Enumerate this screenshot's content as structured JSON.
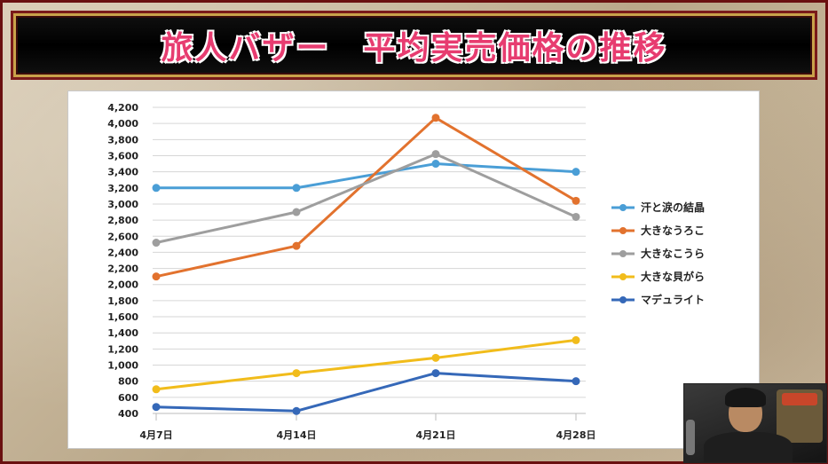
{
  "title": "旅人バザー　平均実売価格の推移",
  "chart_data": {
    "type": "line",
    "categories": [
      "4月7日",
      "4月14日",
      "4月21日",
      "4月28日"
    ],
    "ylim": [
      400,
      4200
    ],
    "yticks": [
      "4,200",
      "4,000",
      "3,800",
      "3,600",
      "3,400",
      "3,200",
      "3,000",
      "2,800",
      "2,600",
      "2,400",
      "2,200",
      "2,000",
      "1,800",
      "1,600",
      "1,400",
      "1,200",
      "1,000",
      "800",
      "600",
      "400"
    ],
    "grid": true,
    "legend_position": "right",
    "series": [
      {
        "name": "汗と涙の結晶",
        "color": "#4a9ed6",
        "values": [
          3200,
          3200,
          3500,
          3400
        ]
      },
      {
        "name": "大きなうろこ",
        "color": "#e2722e",
        "values": [
          2100,
          2480,
          4070,
          3040
        ]
      },
      {
        "name": "大きなこうら",
        "color": "#9e9e9e",
        "values": [
          2520,
          2900,
          3620,
          2840
        ]
      },
      {
        "name": "大きな貝がら",
        "color": "#f1bc1b",
        "values": [
          700,
          900,
          1090,
          1310
        ]
      },
      {
        "name": "マデュライト",
        "color": "#3568b8",
        "values": [
          480,
          430,
          900,
          800
        ]
      }
    ]
  },
  "webcam": {
    "icon": "webcam-feed"
  }
}
